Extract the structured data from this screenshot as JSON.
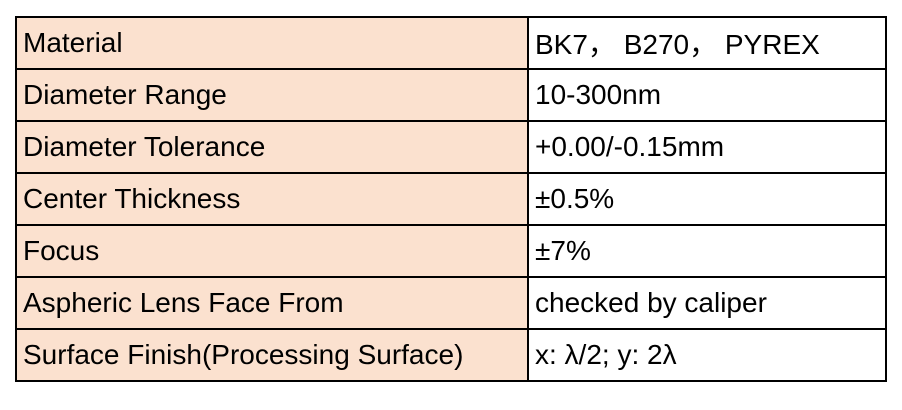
{
  "table": {
    "rows": [
      [
        "Material",
        "BK7， B270， PYREX"
      ],
      [
        "Diameter Range",
        "10-300nm"
      ],
      [
        "Diameter Tolerance",
        "+0.00/-0.15mm"
      ],
      [
        "Center Thickness",
        "±0.5%"
      ],
      [
        "Focus",
        "±7%"
      ],
      [
        "Aspheric Lens Face From",
        "checked by caliper"
      ],
      [
        "Surface Finish(Processing Surface)",
        "x: λ/2; y: 2λ"
      ]
    ]
  }
}
